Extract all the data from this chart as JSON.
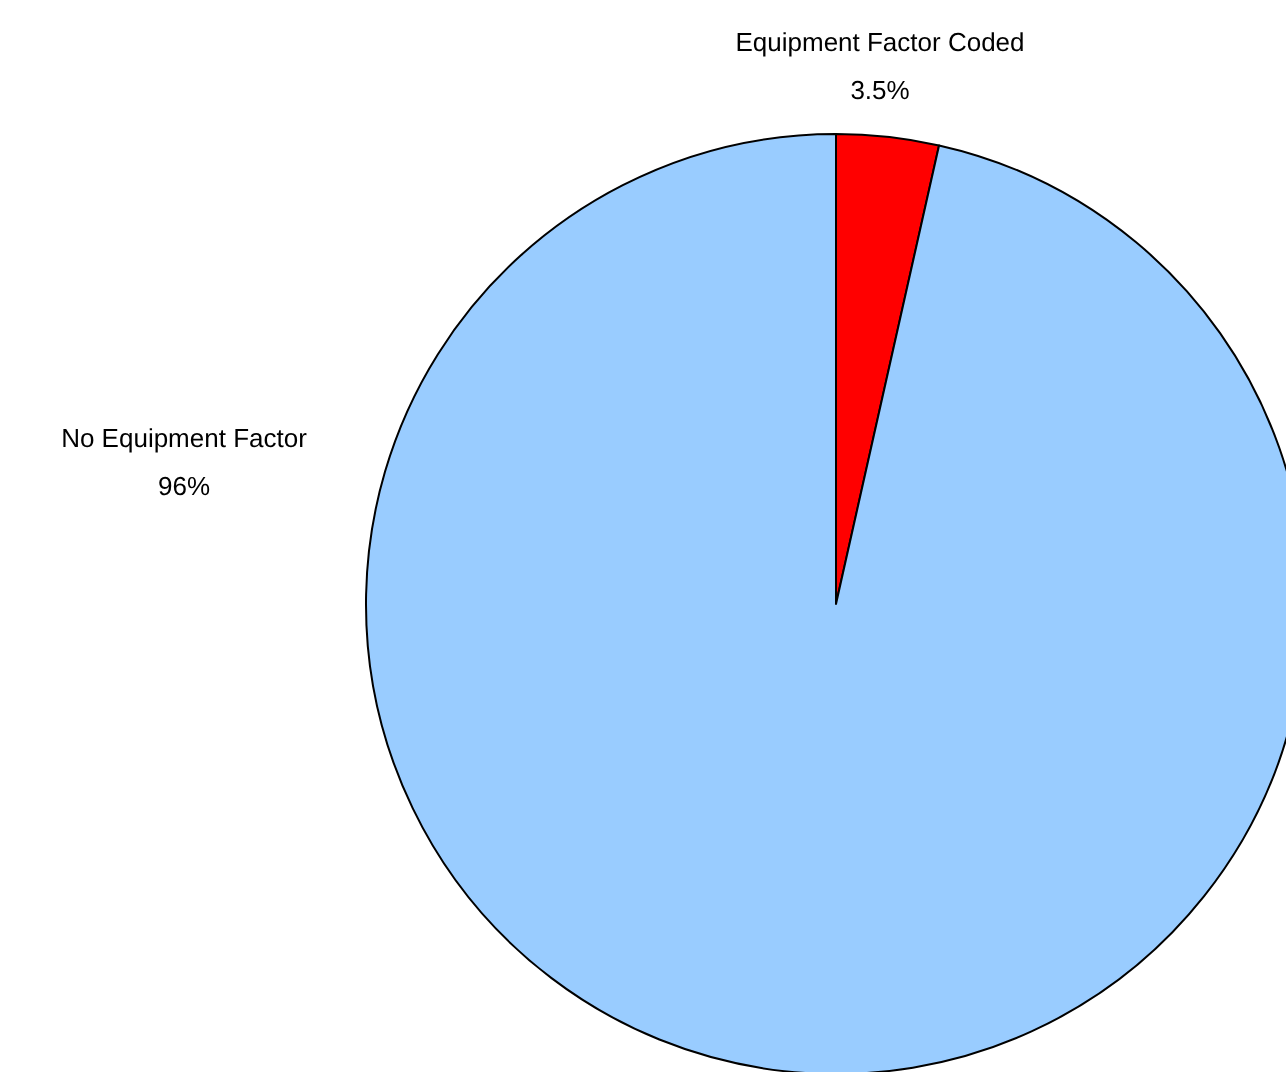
{
  "chart_data": {
    "type": "pie",
    "categories": [
      "Equipment Factor Coded",
      "No Equipment Factor"
    ],
    "values": [
      3.5,
      96
    ],
    "colors": [
      "#ff0000",
      "#99ccff"
    ],
    "value_labels": [
      "3.5%",
      "96%"
    ],
    "legend": false
  }
}
